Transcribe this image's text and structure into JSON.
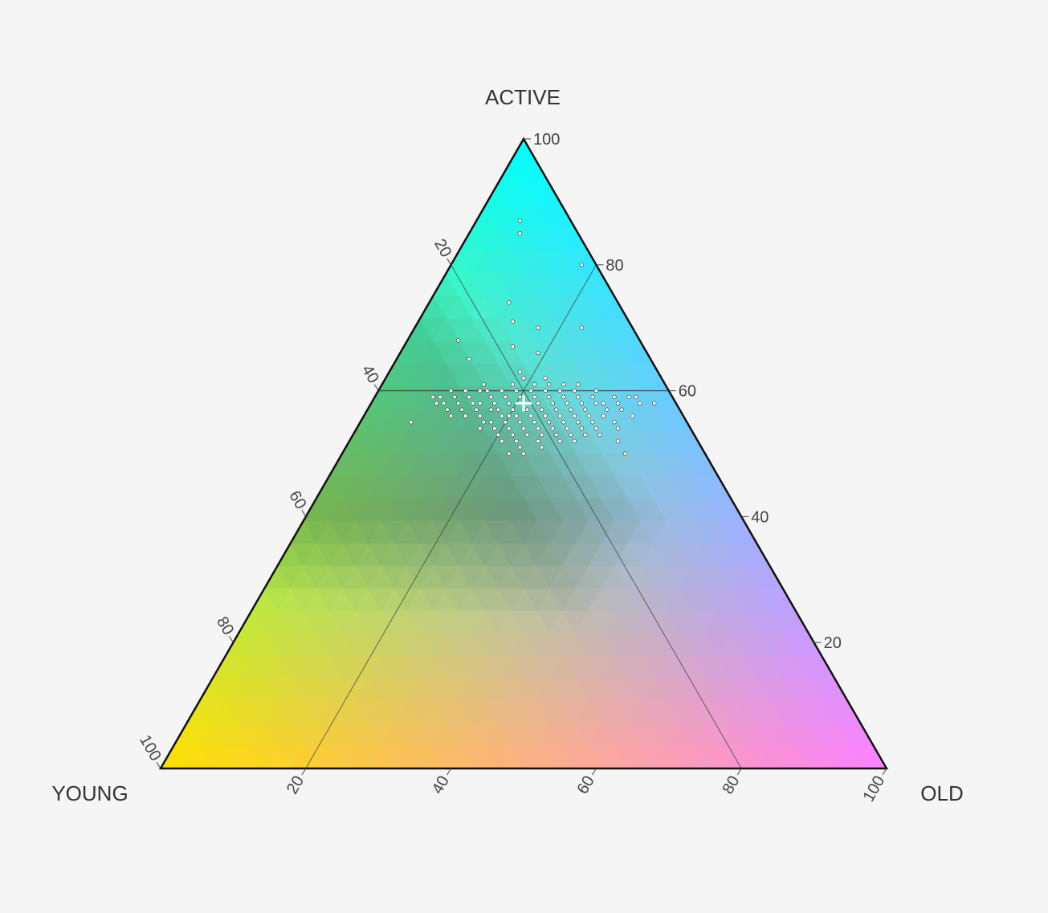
{
  "chart_data": {
    "type": "scatter",
    "subtype": "ternary",
    "axes": {
      "top": "ACTIVE",
      "left": "YOUNG",
      "right": "OLD"
    },
    "ticks": [
      20,
      40,
      60,
      80,
      100
    ],
    "scale": [
      0,
      100
    ],
    "background_colors": {
      "active_corner": "#00ffff",
      "young_corner": "#ffe000",
      "old_corner": "#ff80ff"
    },
    "reference_point": {
      "active": 60,
      "old": 20,
      "young": 20
    },
    "centroid_marker": {
      "active": 58,
      "old": 21,
      "young": 21
    },
    "points": [
      {
        "a": 87,
        "o": 6
      },
      {
        "a": 85,
        "o": 7
      },
      {
        "a": 80,
        "o": 18
      },
      {
        "a": 74,
        "o": 11
      },
      {
        "a": 71,
        "o": 13
      },
      {
        "a": 70,
        "o": 17
      },
      {
        "a": 70,
        "o": 23
      },
      {
        "a": 68,
        "o": 7
      },
      {
        "a": 67,
        "o": 15
      },
      {
        "a": 66,
        "o": 19
      },
      {
        "a": 65,
        "o": 10
      },
      {
        "a": 63,
        "o": 18
      },
      {
        "a": 62,
        "o": 19
      },
      {
        "a": 62,
        "o": 22
      },
      {
        "a": 61,
        "o": 21
      },
      {
        "a": 61,
        "o": 14
      },
      {
        "a": 61,
        "o": 18
      },
      {
        "a": 61,
        "o": 23
      },
      {
        "a": 61,
        "o": 25
      },
      {
        "a": 60,
        "o": 15
      },
      {
        "a": 60,
        "o": 17
      },
      {
        "a": 60,
        "o": 19
      },
      {
        "a": 60,
        "o": 21
      },
      {
        "a": 60,
        "o": 23
      },
      {
        "a": 60,
        "o": 27
      },
      {
        "a": 60,
        "o": 12
      },
      {
        "a": 60,
        "o": 14
      },
      {
        "a": 59,
        "o": 13
      },
      {
        "a": 59,
        "o": 16
      },
      {
        "a": 59,
        "o": 18
      },
      {
        "a": 59,
        "o": 20
      },
      {
        "a": 59,
        "o": 22
      },
      {
        "a": 59,
        "o": 24
      },
      {
        "a": 59,
        "o": 26
      },
      {
        "a": 59,
        "o": 28
      },
      {
        "a": 59,
        "o": 11
      },
      {
        "a": 59,
        "o": 8
      },
      {
        "a": 59,
        "o": 9
      },
      {
        "a": 58,
        "o": 10
      },
      {
        "a": 58,
        "o": 12
      },
      {
        "a": 58,
        "o": 14
      },
      {
        "a": 58,
        "o": 17
      },
      {
        "a": 58,
        "o": 19
      },
      {
        "a": 58,
        "o": 21
      },
      {
        "a": 58,
        "o": 23
      },
      {
        "a": 58,
        "o": 25
      },
      {
        "a": 58,
        "o": 27
      },
      {
        "a": 58,
        "o": 29
      },
      {
        "a": 58,
        "o": 32
      },
      {
        "a": 58,
        "o": 34
      },
      {
        "a": 57,
        "o": 13
      },
      {
        "a": 57,
        "o": 15
      },
      {
        "a": 57,
        "o": 18
      },
      {
        "a": 57,
        "o": 20
      },
      {
        "a": 57,
        "o": 22
      },
      {
        "a": 57,
        "o": 24
      },
      {
        "a": 57,
        "o": 26
      },
      {
        "a": 57,
        "o": 28
      },
      {
        "a": 57,
        "o": 30
      },
      {
        "a": 56,
        "o": 14
      },
      {
        "a": 56,
        "o": 16
      },
      {
        "a": 56,
        "o": 19
      },
      {
        "a": 56,
        "o": 21
      },
      {
        "a": 56,
        "o": 23
      },
      {
        "a": 56,
        "o": 25
      },
      {
        "a": 56,
        "o": 27
      },
      {
        "a": 56,
        "o": 29
      },
      {
        "a": 56,
        "o": 31
      },
      {
        "a": 55,
        "o": 17
      },
      {
        "a": 55,
        "o": 20
      },
      {
        "a": 55,
        "o": 22
      },
      {
        "a": 55,
        "o": 24
      },
      {
        "a": 55,
        "o": 26
      },
      {
        "a": 55,
        "o": 28
      },
      {
        "a": 55,
        "o": 30
      },
      {
        "a": 55,
        "o": 7
      },
      {
        "a": 54,
        "o": 19
      },
      {
        "a": 54,
        "o": 23
      },
      {
        "a": 54,
        "o": 25
      },
      {
        "a": 54,
        "o": 27
      },
      {
        "a": 54,
        "o": 29
      },
      {
        "a": 54,
        "o": 31
      },
      {
        "a": 54,
        "o": 33
      },
      {
        "a": 54,
        "o": 36
      },
      {
        "a": 53,
        "o": 20
      },
      {
        "a": 53,
        "o": 24
      },
      {
        "a": 53,
        "o": 26
      },
      {
        "a": 53,
        "o": 28
      },
      {
        "a": 53,
        "o": 30
      },
      {
        "a": 53,
        "o": 32
      },
      {
        "a": 52,
        "o": 21
      },
      {
        "a": 52,
        "o": 26
      },
      {
        "a": 52,
        "o": 29
      },
      {
        "a": 52,
        "o": 37
      },
      {
        "a": 51,
        "o": 24
      },
      {
        "a": 51,
        "o": 27
      },
      {
        "a": 50,
        "o": 23
      },
      {
        "a": 50,
        "o": 25
      },
      {
        "a": 50,
        "o": 39
      },
      {
        "a": 60,
        "o": 30
      },
      {
        "a": 59,
        "o": 33
      },
      {
        "a": 58,
        "o": 37
      },
      {
        "a": 57,
        "o": 35
      },
      {
        "a": 56,
        "o": 33
      },
      {
        "a": 55,
        "o": 35
      },
      {
        "a": 57,
        "o": 11
      },
      {
        "a": 58,
        "o": 9
      },
      {
        "a": 56,
        "o": 12
      },
      {
        "a": 58,
        "o": 15
      },
      {
        "a": 59,
        "o": 30
      },
      {
        "a": 60,
        "o": 25
      },
      {
        "a": 61,
        "o": 27
      },
      {
        "a": 57,
        "o": 17
      },
      {
        "a": 56,
        "o": 20
      },
      {
        "a": 55,
        "o": 18
      },
      {
        "a": 53,
        "o": 22
      },
      {
        "a": 54,
        "o": 21
      },
      {
        "a": 52,
        "o": 23
      },
      {
        "a": 58,
        "o": 31
      },
      {
        "a": 57,
        "o": 33
      },
      {
        "a": 59,
        "o": 35
      },
      {
        "a": 56,
        "o": 37
      },
      {
        "a": 55,
        "o": 32
      },
      {
        "a": 58,
        "o": 39
      },
      {
        "a": 53,
        "o": 34
      },
      {
        "a": 52,
        "o": 31
      },
      {
        "a": 54,
        "o": 17
      },
      {
        "a": 60,
        "o": 10
      },
      {
        "a": 59,
        "o": 36
      }
    ]
  }
}
